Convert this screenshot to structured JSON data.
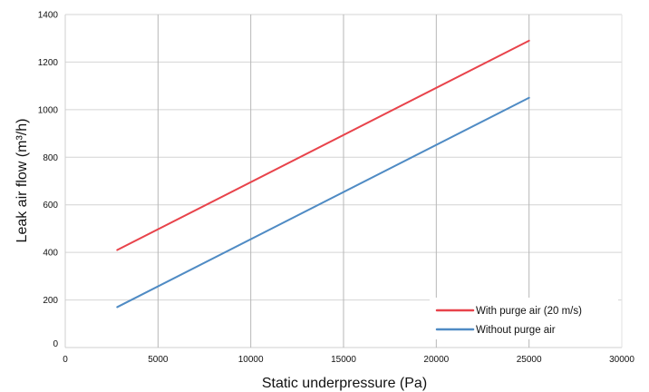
{
  "chart_data": {
    "type": "line",
    "title": "",
    "xlabel": "Static underpressure (Pa)",
    "ylabel": "Leak air flow (m³/h)",
    "xlim": [
      0,
      30000
    ],
    "ylim": [
      0,
      1400
    ],
    "xticks": [
      0,
      5000,
      10000,
      15000,
      20000,
      25000,
      30000
    ],
    "yticks": [
      0,
      200,
      400,
      600,
      800,
      1000,
      1200,
      1400
    ],
    "x_tick_labels": [
      "0",
      "5000",
      "10000",
      "15000",
      "20000",
      "25000",
      "30000"
    ],
    "y_tick_labels": [
      "0",
      "200",
      "400",
      "600",
      "800",
      "1000",
      "1200",
      "1400"
    ],
    "grid": true,
    "legend_position": "bottom-right",
    "series": [
      {
        "name": "With purge air (20 m/s)",
        "color": "#e8434b",
        "x": [
          2800,
          25000
        ],
        "y": [
          410,
          1290
        ]
      },
      {
        "name": "Without purge air",
        "color": "#4f8bc4",
        "x": [
          2800,
          25000
        ],
        "y": [
          170,
          1050
        ]
      }
    ]
  }
}
